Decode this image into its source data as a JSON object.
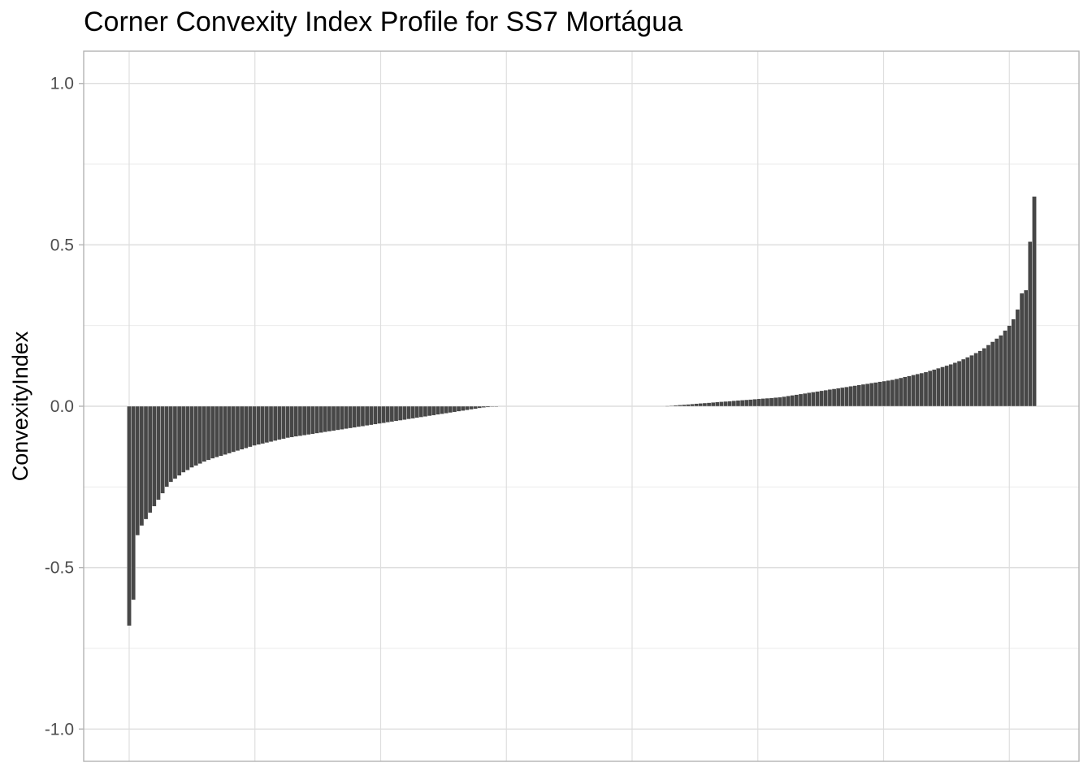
{
  "chart_data": {
    "type": "bar",
    "title": "Corner Convexity Index Profile for SS7 Mortágua",
    "xlabel": "",
    "ylabel": "ConvexityIndex",
    "ylim": [
      -1.1,
      1.1
    ],
    "yticks": [
      -1.0,
      -0.5,
      0.0,
      0.5,
      1.0
    ],
    "ytick_labels": [
      "-1.0",
      "-0.5",
      "0.0",
      "0.5",
      "1.0"
    ],
    "x_tick_labels_shown": false,
    "grid": true,
    "bar_color": "#474747",
    "bar_outline_color": "#ffffff",
    "description_sorted": "ascending",
    "values": [
      -0.68,
      -0.6,
      -0.4,
      -0.37,
      -0.35,
      -0.33,
      -0.31,
      -0.29,
      -0.27,
      -0.25,
      -0.235,
      -0.225,
      -0.215,
      -0.205,
      -0.198,
      -0.19,
      -0.184,
      -0.178,
      -0.172,
      -0.167,
      -0.162,
      -0.158,
      -0.154,
      -0.15,
      -0.146,
      -0.142,
      -0.138,
      -0.134,
      -0.13,
      -0.126,
      -0.122,
      -0.119,
      -0.116,
      -0.113,
      -0.11,
      -0.107,
      -0.104,
      -0.101,
      -0.098,
      -0.096,
      -0.094,
      -0.092,
      -0.09,
      -0.088,
      -0.086,
      -0.084,
      -0.082,
      -0.08,
      -0.078,
      -0.076,
      -0.074,
      -0.072,
      -0.07,
      -0.068,
      -0.066,
      -0.064,
      -0.062,
      -0.06,
      -0.058,
      -0.056,
      -0.054,
      -0.052,
      -0.05,
      -0.048,
      -0.046,
      -0.044,
      -0.042,
      -0.04,
      -0.038,
      -0.036,
      -0.034,
      -0.032,
      -0.03,
      -0.028,
      -0.026,
      -0.024,
      -0.022,
      -0.02,
      -0.018,
      -0.016,
      -0.014,
      -0.012,
      -0.01,
      -0.008,
      -0.006,
      -0.004,
      -0.003,
      -0.002,
      -0.001,
      0,
      0,
      0,
      0,
      0,
      0,
      0,
      0,
      0,
      0,
      0,
      0,
      0,
      0,
      0,
      0,
      0,
      0,
      0,
      0,
      0,
      0,
      0,
      0,
      0,
      0,
      0,
      0,
      0,
      0,
      0,
      0,
      0,
      0,
      0,
      0,
      0,
      0,
      0,
      0,
      0.001,
      0.002,
      0.003,
      0.004,
      0.005,
      0.006,
      0.007,
      0.008,
      0.009,
      0.01,
      0.011,
      0.012,
      0.013,
      0.014,
      0.015,
      0.016,
      0.017,
      0.018,
      0.019,
      0.02,
      0.021,
      0.022,
      0.023,
      0.024,
      0.025,
      0.026,
      0.027,
      0.028,
      0.03,
      0.032,
      0.034,
      0.036,
      0.038,
      0.04,
      0.042,
      0.044,
      0.046,
      0.048,
      0.05,
      0.052,
      0.054,
      0.056,
      0.058,
      0.06,
      0.062,
      0.064,
      0.066,
      0.068,
      0.07,
      0.072,
      0.074,
      0.076,
      0.078,
      0.08,
      0.082,
      0.085,
      0.088,
      0.091,
      0.094,
      0.097,
      0.1,
      0.103,
      0.106,
      0.11,
      0.114,
      0.118,
      0.122,
      0.126,
      0.13,
      0.135,
      0.14,
      0.146,
      0.152,
      0.158,
      0.165,
      0.172,
      0.18,
      0.19,
      0.2,
      0.21,
      0.22,
      0.235,
      0.25,
      0.27,
      0.3,
      0.35,
      0.36,
      0.51,
      0.65
    ]
  }
}
